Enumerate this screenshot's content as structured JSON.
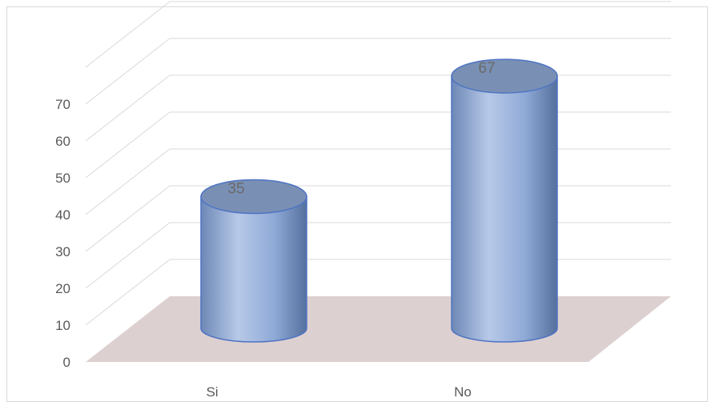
{
  "chart_data": {
    "type": "bar",
    "categories": [
      "Si",
      "No"
    ],
    "values": [
      35,
      67
    ],
    "yticks": [
      "0",
      "10",
      "20",
      "30",
      "40",
      "50",
      "60",
      "70"
    ],
    "ylim": [
      0,
      80
    ],
    "grid": true,
    "style": "3d-cylinder",
    "colors": {
      "bar_light": "#b7c9e8",
      "bar_mid": "#8fa9d6",
      "bar_dark": "#5a78a8",
      "top": "#7990b4",
      "floor": "#ddd0d0",
      "grid": "#d9d9d9"
    }
  }
}
